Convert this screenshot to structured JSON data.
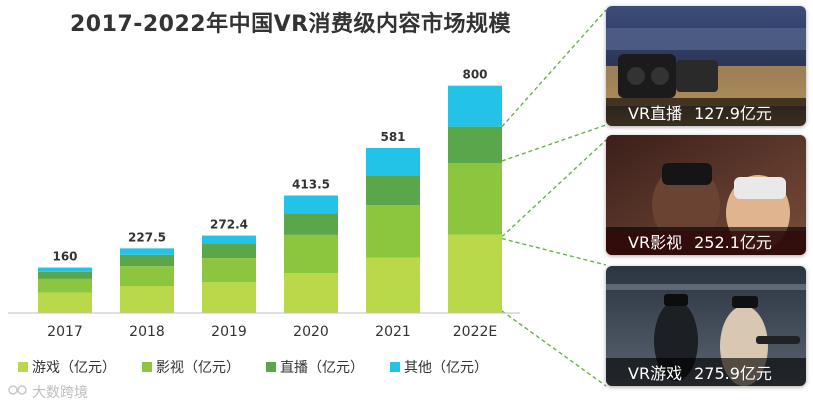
{
  "chart_data": {
    "type": "bar",
    "stacked": true,
    "title": "2017-2022年中国VR消费级内容市场规模",
    "categories": [
      "2017",
      "2018",
      "2019",
      "2020",
      "2021",
      "2022E"
    ],
    "totals": [
      160,
      227.5,
      272.4,
      413.5,
      581,
      800
    ],
    "total_labels": [
      "160",
      "227.5",
      "272.4",
      "413.5",
      "581",
      "800"
    ],
    "series": [
      {
        "name": "游戏（亿元）",
        "color": "#b9d84a",
        "values": [
          72,
          95,
          108,
          140,
          195,
          275.9
        ]
      },
      {
        "name": "影视（亿元）",
        "color": "#8cc63f",
        "values": [
          48,
          70,
          85,
          135,
          185,
          252.1
        ]
      },
      {
        "name": "直播（亿元）",
        "color": "#5aa64a",
        "values": [
          25,
          40,
          52,
          75,
          105,
          127.9
        ]
      },
      {
        "name": "其他（亿元）",
        "color": "#23c3e8",
        "values": [
          15,
          22.5,
          27.4,
          63.5,
          96,
          144.1
        ]
      }
    ],
    "ylim": [
      0,
      820
    ],
    "xlabel": "",
    "ylabel": ""
  },
  "callouts": [
    {
      "name": "VR直播",
      "value": "127.9亿元"
    },
    {
      "name": "VR影视",
      "value": "252.1亿元"
    },
    {
      "name": "VR游戏",
      "value": "275.9亿元"
    }
  ],
  "watermark": "大数跨境",
  "colors": {
    "connector": "#6ab04c",
    "axis": "#bfbfbf"
  }
}
